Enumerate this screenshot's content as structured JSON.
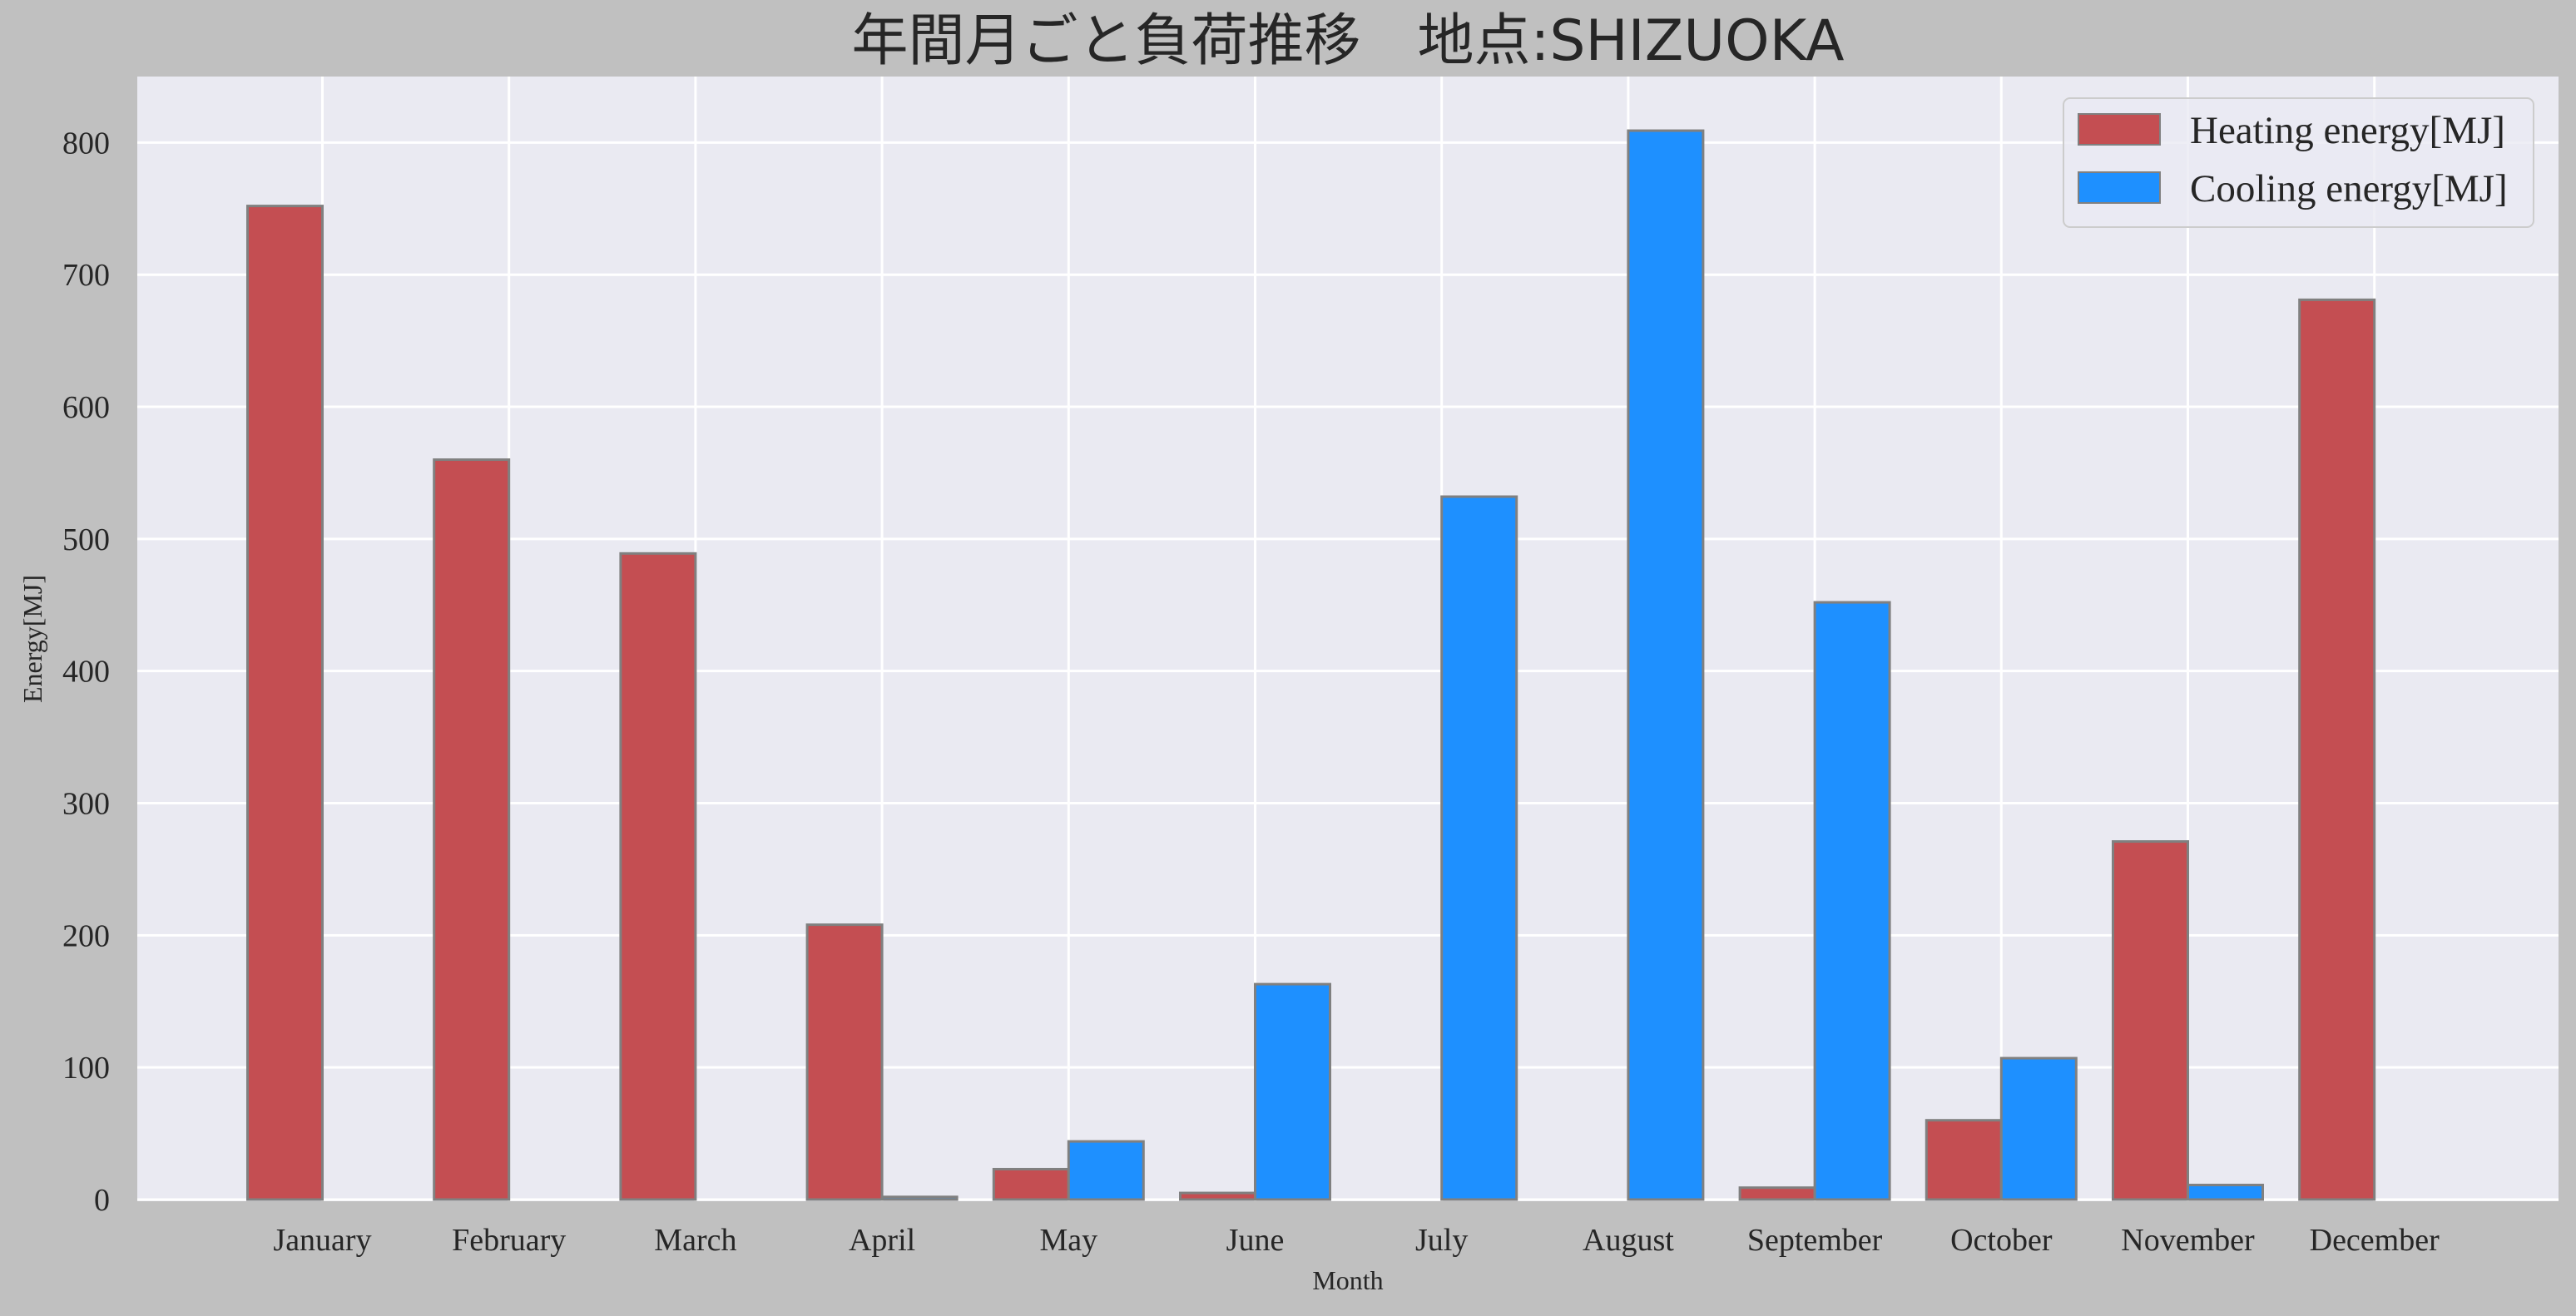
{
  "chart_data": {
    "type": "bar",
    "title": "年間月ごと負荷推移　地点:SHIZUOKA",
    "xlabel": "Month",
    "ylabel": "Energy[MJ]",
    "categories": [
      "January",
      "February",
      "March",
      "April",
      "May",
      "June",
      "July",
      "August",
      "September",
      "October",
      "November",
      "December"
    ],
    "series": [
      {
        "name": "Heating energy[MJ]",
        "color": "#c44e52",
        "values": [
          752,
          560,
          489,
          208,
          23,
          5,
          0,
          0,
          9,
          60,
          271,
          681
        ]
      },
      {
        "name": "Cooling energy[MJ]",
        "color": "#1e90ff",
        "values": [
          0,
          0,
          0,
          2,
          44,
          163,
          532,
          809,
          452,
          107,
          11,
          0
        ]
      }
    ],
    "ylim": [
      0,
      850
    ],
    "yticks": [
      0,
      100,
      200,
      300,
      400,
      500,
      600,
      700,
      800
    ],
    "grid": true,
    "legend_position": "top-right",
    "colors": {
      "figure_background": "#c0c0c0",
      "plot_background": "#eaeaf2",
      "grid": "#ffffff",
      "bar_edge": "#808080",
      "text": "#262626"
    }
  }
}
